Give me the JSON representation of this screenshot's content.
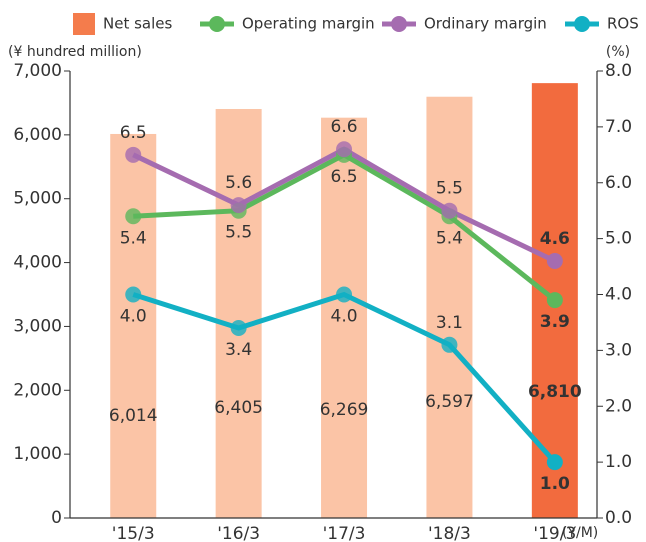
{
  "chart_data": {
    "type": "bar-line",
    "categories": [
      "'15/3",
      "'16/3",
      "'17/3",
      "'18/3",
      "'19/3"
    ],
    "x_label": "(Y/M)",
    "y_label": "(¥ hundred million)",
    "y2_label": "(%)",
    "ylim": [
      0,
      7000
    ],
    "yticks": [
      0,
      {
        "value": 1000,
        "label": "1,000"
      },
      {
        "value": 2000,
        "label": "2,000"
      },
      {
        "value": 3000,
        "label": "3,000"
      },
      {
        "value": 4000,
        "label": "4,000"
      },
      {
        "value": 5000,
        "label": "5,000"
      },
      {
        "value": 6000,
        "label": "6,000"
      },
      {
        "value": 7000,
        "label": "7,000"
      }
    ],
    "y2lim": [
      0,
      8
    ],
    "y2ticks": [
      {
        "value": 0,
        "label": "0.0"
      },
      {
        "value": 1,
        "label": "1.0"
      },
      {
        "value": 2,
        "label": "2.0"
      },
      {
        "value": 3,
        "label": "3.0"
      },
      {
        "value": 4,
        "label": "4.0"
      },
      {
        "value": 5,
        "label": "5.0"
      },
      {
        "value": 6,
        "label": "6.0"
      },
      {
        "value": 7,
        "label": "7.0"
      },
      {
        "value": 8,
        "label": "8.0"
      }
    ],
    "series": [
      {
        "name": "Net sales",
        "type": "bar",
        "color": "#f47c4c",
        "colors": [
          "#fbc4a6",
          "#fbc4a6",
          "#fbc4a6",
          "#fbc4a6",
          "#f26b3e"
        ],
        "values": [
          6014,
          6405,
          6269,
          6597,
          6810
        ],
        "value_labels": [
          "6,014",
          "6,405",
          "6,269",
          "6,597",
          "6,810"
        ]
      },
      {
        "name": "Operating margin",
        "type": "line",
        "axis": "y2",
        "color": "#5cb85c",
        "values": [
          5.4,
          5.5,
          6.5,
          5.4,
          3.9
        ],
        "value_labels": [
          "5.4",
          "5.5",
          "6.5",
          "5.4",
          "3.9"
        ]
      },
      {
        "name": "Ordinary margin",
        "type": "line",
        "axis": "y2",
        "color": "#a56cb0",
        "values": [
          6.5,
          5.6,
          6.6,
          5.5,
          4.6
        ],
        "value_labels": [
          "6.5",
          "5.6",
          "6.6",
          "5.5",
          "4.6"
        ]
      },
      {
        "name": "ROS",
        "type": "line",
        "axis": "y2",
        "color": "#12b0c4",
        "values": [
          4.0,
          3.4,
          4.0,
          3.1,
          1.0
        ],
        "value_labels": [
          "4.0",
          "3.4",
          "4.0",
          "3.1",
          "1.0"
        ]
      }
    ]
  }
}
